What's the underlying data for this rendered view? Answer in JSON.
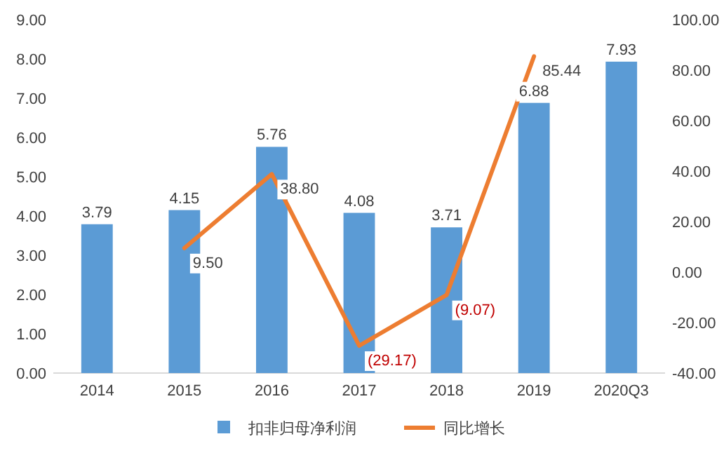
{
  "chart_data": {
    "type": "bar",
    "categories": [
      "2014",
      "2015",
      "2016",
      "2017",
      "2018",
      "2019",
      "2020Q3"
    ],
    "series": [
      {
        "name": "扣非归母净利润",
        "color": "#5b9bd5",
        "values": [
          3.79,
          4.15,
          5.76,
          4.08,
          3.71,
          6.88,
          7.93
        ],
        "value_labels": [
          "3.79",
          "4.15",
          "5.76",
          "4.08",
          "3.71",
          "6.88",
          "7.93"
        ]
      },
      {
        "name": "同比增长",
        "type": "line",
        "axis": "y2",
        "color": "#ed7d31",
        "values": [
          null,
          9.5,
          38.8,
          -29.17,
          -9.07,
          85.44,
          null
        ],
        "value_labels": [
          null,
          "9.50",
          "38.80",
          "(29.17)",
          "(9.07)",
          "85.44",
          null
        ]
      }
    ],
    "ylim": [
      0,
      9
    ],
    "yticks": [
      {
        "value": 0,
        "label": "0.00"
      },
      {
        "value": 1,
        "label": "1.00"
      },
      {
        "value": 2,
        "label": "2.00"
      },
      {
        "value": 3,
        "label": "3.00"
      },
      {
        "value": 4,
        "label": "4.00"
      },
      {
        "value": 5,
        "label": "5.00"
      },
      {
        "value": 6,
        "label": "6.00"
      },
      {
        "value": 7,
        "label": "7.00"
      },
      {
        "value": 8,
        "label": "8.00"
      },
      {
        "value": 9,
        "label": "9.00"
      }
    ],
    "y2lim": [
      -40,
      100
    ],
    "y2ticks": [
      {
        "value": -40,
        "label": "-40.00"
      },
      {
        "value": -20,
        "label": "-20.00"
      },
      {
        "value": 0,
        "label": "0.00"
      },
      {
        "value": 20,
        "label": "20.00"
      },
      {
        "value": 40,
        "label": "40.00"
      },
      {
        "value": 60,
        "label": "60.00"
      },
      {
        "value": 80,
        "label": "80.00"
      },
      {
        "value": 100,
        "label": "100.00"
      }
    ],
    "legend": "bottom"
  }
}
